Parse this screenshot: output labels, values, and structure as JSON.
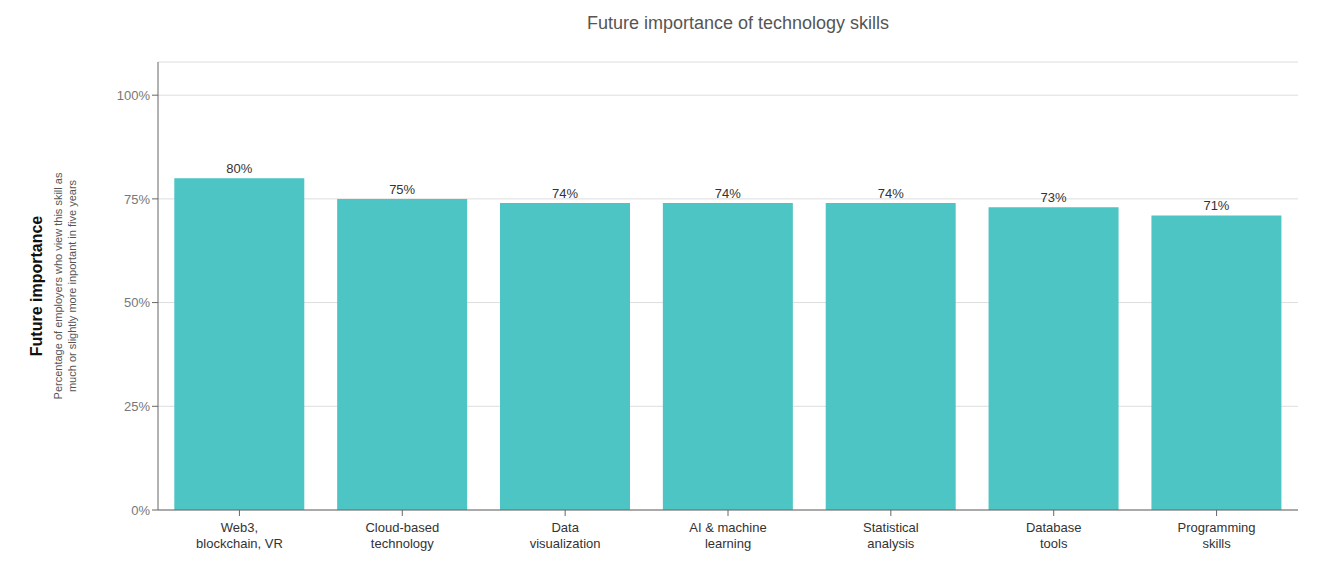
{
  "chart_data": {
    "type": "bar",
    "title": "Future importance of technology skills",
    "ylabel": "Future importance",
    "ylabel_note": "Percentage of employers who view this skill as\nmuch or slightly more inportant in five years",
    "categories": [
      "Web3,\nblockchain, VR",
      "Cloud-based\ntechnology",
      "Data\nvisualization",
      "AI & machine\nlearning",
      "Statistical\nanalysis",
      "Database\ntools",
      "Programming\nskills"
    ],
    "values": [
      80,
      75,
      74,
      74,
      74,
      73,
      71
    ],
    "value_labels": [
      "80%",
      "75%",
      "74%",
      "74%",
      "74%",
      "73%",
      "71%"
    ],
    "data_labels": true,
    "color": "#4EC5C5",
    "ylim": [
      0,
      108
    ],
    "yticks": [
      {
        "value": 0,
        "label": "0%"
      },
      {
        "value": 25,
        "label": "25%"
      },
      {
        "value": 50,
        "label": "50%"
      },
      {
        "value": 75,
        "label": "75%"
      },
      {
        "value": 100,
        "label": "100%"
      }
    ],
    "grid": true
  }
}
